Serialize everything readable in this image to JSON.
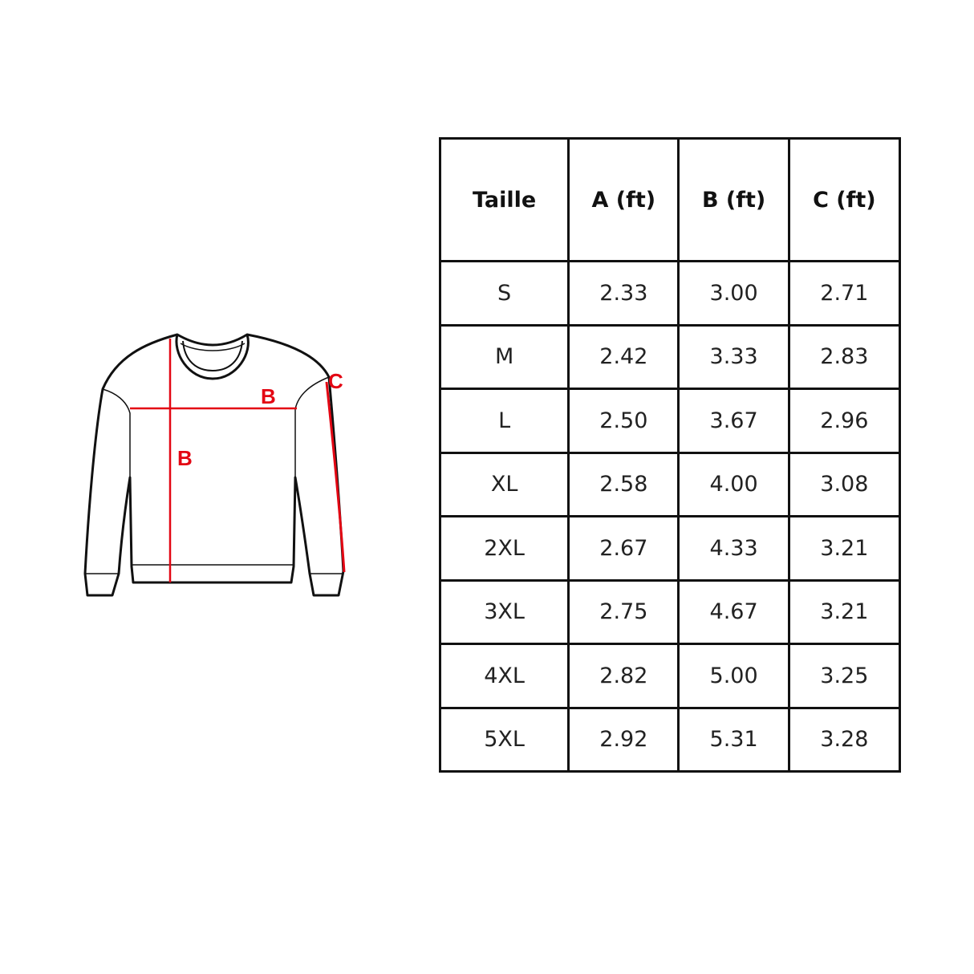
{
  "diagram": {
    "labels": {
      "width": "B",
      "length": "B",
      "sleeve": "C"
    },
    "accent_color": "#e30613"
  },
  "table": {
    "headers": [
      "Taille",
      "A (ft)",
      "B (ft)",
      "C (ft)"
    ],
    "rows": [
      [
        "S",
        "2.33",
        "3.00",
        "2.71"
      ],
      [
        "M",
        "2.42",
        "3.33",
        "2.83"
      ],
      [
        "L",
        "2.50",
        "3.67",
        "2.96"
      ],
      [
        "XL",
        "2.58",
        "4.00",
        "3.08"
      ],
      [
        "2XL",
        "2.67",
        "4.33",
        "3.21"
      ],
      [
        "3XL",
        "2.75",
        "4.67",
        "3.21"
      ],
      [
        "4XL",
        "2.82",
        "5.00",
        "3.25"
      ],
      [
        "5XL",
        "2.92",
        "5.31",
        "3.28"
      ]
    ]
  }
}
